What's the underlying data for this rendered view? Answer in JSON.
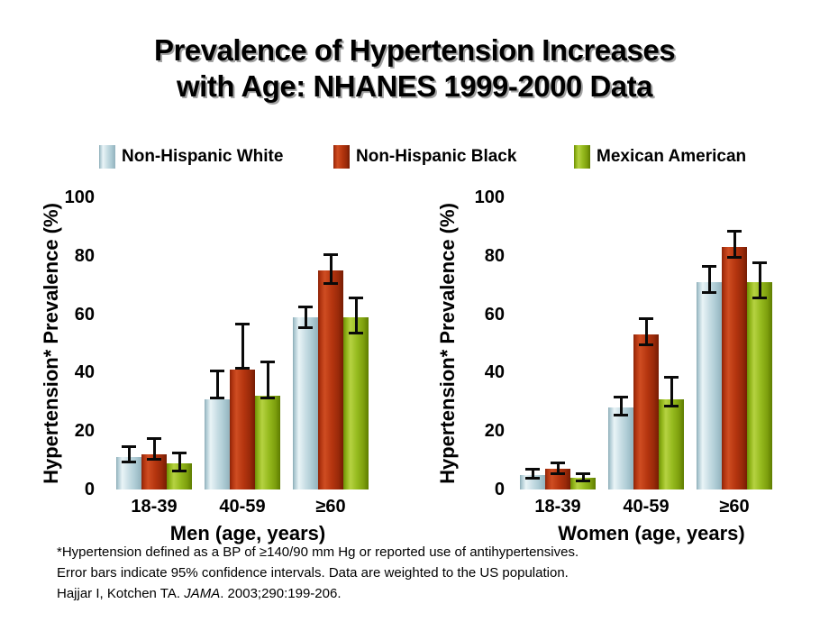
{
  "slide": {
    "title_line1": "Prevalence of Hypertension Increases",
    "title_line2": "with Age: NHANES 1999-2000 Data",
    "footnotes": [
      {
        "text": "*Hypertension defined as a BP of ≥140/90 mm Hg or reported use of antihypertensives."
      },
      {
        "text": "Error bars indicate 95% confidence intervals. Data are weighted to the US population."
      },
      {
        "pre": "Hajjar I, Kotchen TA. ",
        "italic": "JAMA",
        "post": ". 2003;290:199-206."
      }
    ]
  },
  "legend": {
    "items": [
      {
        "label": "Non-Hispanic White",
        "color": "#b9d3db"
      },
      {
        "label": "Non-Hispanic Black",
        "color": "#b53410"
      },
      {
        "label": "Mexican American",
        "color": "#8fb318"
      }
    ]
  },
  "chart_data": [
    {
      "type": "bar",
      "title": "Men (age, years)",
      "ylabel": "Hypertension* Prevalence (%)",
      "categories": [
        "18-39",
        "40-59",
        "≥60"
      ],
      "yticks": [
        0,
        20,
        40,
        60,
        80,
        100
      ],
      "ylim": [
        0,
        100
      ],
      "grid": false,
      "error_bars": "95% confidence intervals",
      "series": [
        {
          "name": "Non-Hispanic White",
          "color": "#b9d3db",
          "values": [
            11,
            31,
            59
          ],
          "ci_low": [
            9,
            31,
            55
          ],
          "ci_high": [
            15,
            41,
            63
          ]
        },
        {
          "name": "Non-Hispanic Black",
          "color": "#b53410",
          "values": [
            12,
            41,
            75
          ],
          "ci_low": [
            10,
            41,
            70
          ],
          "ci_high": [
            18,
            57,
            81
          ]
        },
        {
          "name": "Mexican American",
          "color": "#8fb318",
          "values": [
            9,
            32,
            59
          ],
          "ci_low": [
            6,
            31,
            53
          ],
          "ci_high": [
            13,
            44,
            66
          ]
        }
      ]
    },
    {
      "type": "bar",
      "title": "Women (age, years)",
      "ylabel": "Hypertension* Prevalence (%)",
      "categories": [
        "18-39",
        "40-59",
        "≥60"
      ],
      "yticks": [
        0,
        20,
        40,
        60,
        80,
        100
      ],
      "ylim": [
        0,
        100
      ],
      "grid": false,
      "error_bars": "95% confidence intervals",
      "series": [
        {
          "name": "Non-Hispanic White",
          "color": "#b9d3db",
          "values": [
            5,
            28,
            71
          ],
          "ci_low": [
            3.5,
            25,
            67
          ],
          "ci_high": [
            7.5,
            32,
            77
          ]
        },
        {
          "name": "Non-Hispanic Black",
          "color": "#b53410",
          "values": [
            7,
            53,
            83
          ],
          "ci_low": [
            5,
            49,
            79
          ],
          "ci_high": [
            9.5,
            59,
            89
          ]
        },
        {
          "name": "Mexican American",
          "color": "#8fb318",
          "values": [
            4,
            31,
            71
          ],
          "ci_low": [
            2.5,
            28,
            65
          ],
          "ci_high": [
            6,
            39,
            78
          ]
        }
      ]
    }
  ]
}
